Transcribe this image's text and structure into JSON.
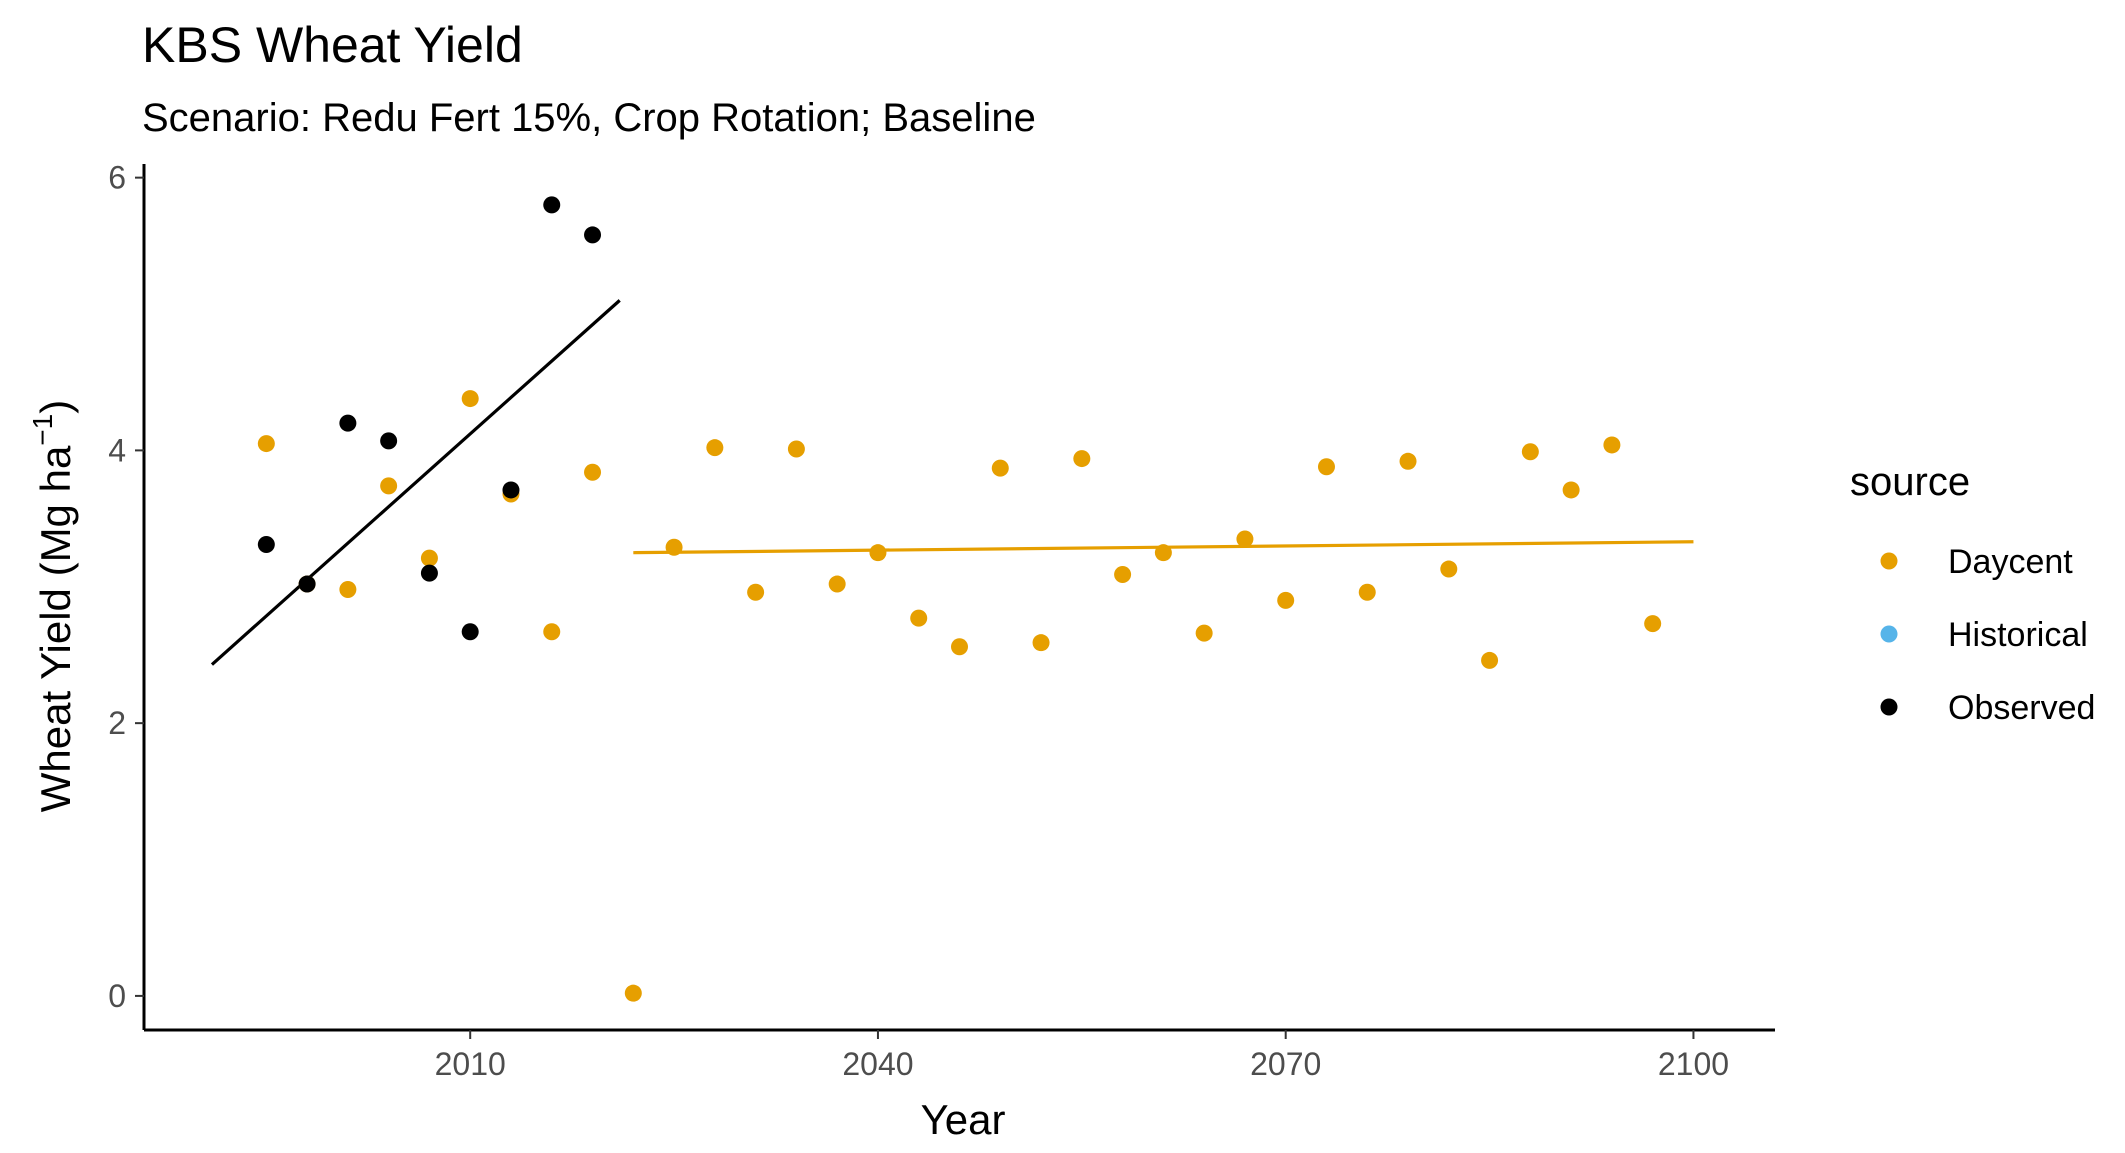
{
  "chart_data": {
    "type": "scatter",
    "title": "KBS Wheat Yield",
    "subtitle": "Scenario: Redu Fert 15%, Crop Rotation; Baseline",
    "xlabel": "Year",
    "ylabel_main": "Wheat Yield (Mg ha",
    "ylabel_sup": "−1",
    "ylabel_close": ")",
    "xlim": [
      1986,
      2106
    ],
    "ylim": [
      -0.25,
      6.1
    ],
    "x_ticks": [
      2010,
      2040,
      2070,
      2100
    ],
    "y_ticks": [
      0,
      2,
      4,
      6
    ],
    "grid": false,
    "legend": {
      "title": "source",
      "position": "right",
      "entries": [
        {
          "label": "Daycent",
          "color": "#E69F00"
        },
        {
          "label": "Historical",
          "color": "#56B4E9"
        },
        {
          "label": "Observed",
          "color": "#000000"
        }
      ]
    },
    "series": [
      {
        "name": "Daycent",
        "color": "#E69F00",
        "points": [
          [
            1995,
            4.05
          ],
          [
            1998,
            3.02
          ],
          [
            2001,
            2.98
          ],
          [
            2004,
            3.74
          ],
          [
            2007,
            3.21
          ],
          [
            2010,
            4.38
          ],
          [
            2013,
            3.68
          ],
          [
            2016,
            2.67
          ],
          [
            2019,
            3.84
          ],
          [
            2022,
            0.02
          ],
          [
            2025,
            3.29
          ],
          [
            2028,
            4.02
          ],
          [
            2031,
            2.96
          ],
          [
            2034,
            4.01
          ],
          [
            2037,
            3.02
          ],
          [
            2040,
            3.25
          ],
          [
            2043,
            2.77
          ],
          [
            2046,
            2.56
          ],
          [
            2049,
            3.87
          ],
          [
            2052,
            2.59
          ],
          [
            2055,
            3.94
          ],
          [
            2058,
            3.09
          ],
          [
            2061,
            3.25
          ],
          [
            2064,
            2.66
          ],
          [
            2067,
            3.35
          ],
          [
            2070,
            2.9
          ],
          [
            2073,
            3.88
          ],
          [
            2076,
            2.96
          ],
          [
            2079,
            3.92
          ],
          [
            2082,
            3.13
          ],
          [
            2085,
            2.46
          ],
          [
            2088,
            3.99
          ],
          [
            2091,
            3.71
          ],
          [
            2094,
            4.04
          ],
          [
            2097,
            2.73
          ]
        ],
        "trend": [
          [
            2022,
            3.25
          ],
          [
            2100,
            3.33
          ]
        ]
      },
      {
        "name": "Historical",
        "color": "#56B4E9",
        "points": []
      },
      {
        "name": "Observed",
        "color": "#000000",
        "points": [
          [
            1995,
            3.31
          ],
          [
            1998,
            3.02
          ],
          [
            2001,
            4.2
          ],
          [
            2004,
            4.07
          ],
          [
            2007,
            3.1
          ],
          [
            2010,
            2.67
          ],
          [
            2013,
            3.71
          ],
          [
            2016,
            5.8
          ],
          [
            2019,
            5.58
          ]
        ],
        "trend": [
          [
            1991,
            2.43
          ],
          [
            2021,
            5.1
          ]
        ]
      }
    ]
  }
}
